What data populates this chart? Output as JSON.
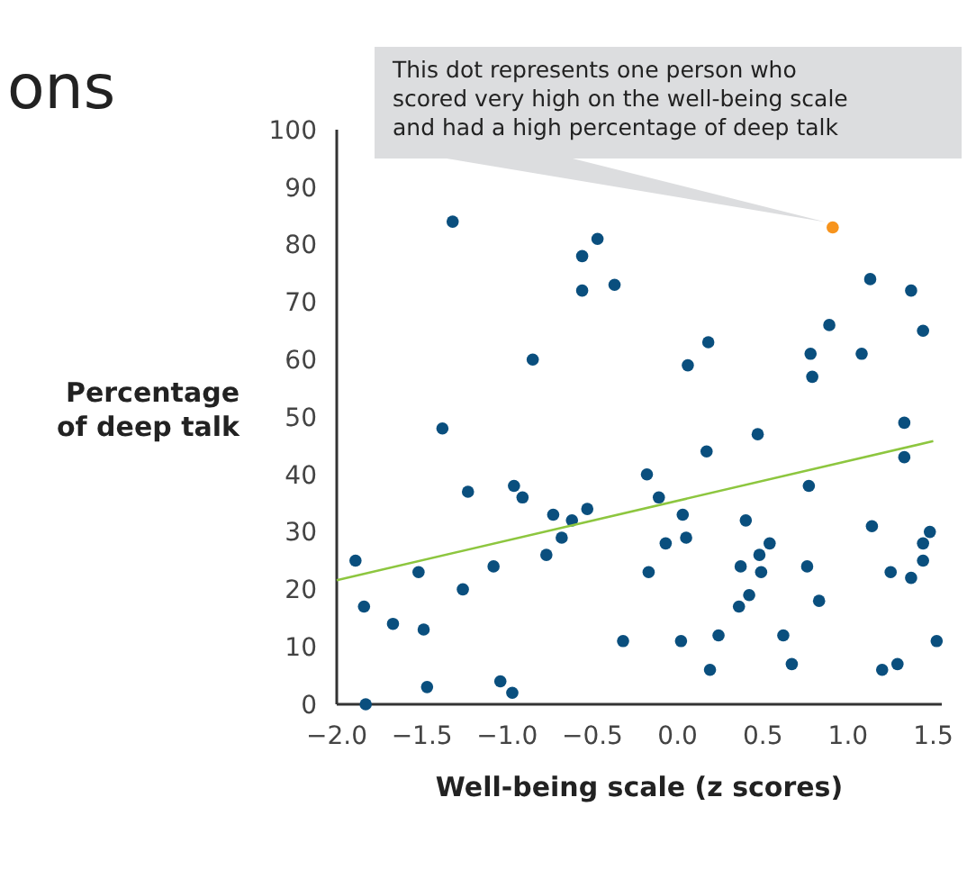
{
  "chart_data": {
    "type": "scatter",
    "xlabel": "Well-being scale (z scores)",
    "ylabel": "Percentage of deep talk",
    "annotations": [
      "ons",
      {
        "text": "This dot represents one person who scored very high on the well-being scale and had a high percentage of deep talk",
        "x": 0.91,
        "y": 83
      }
    ],
    "xlim": [
      -2.0,
      1.55
    ],
    "ylim": [
      0,
      100
    ],
    "xticks": [
      {
        "value": -2,
        "label": "−2.0"
      },
      {
        "value": -1.5,
        "label": "−1.5"
      },
      {
        "value": -1,
        "label": "−1.0"
      },
      {
        "value": -0.5,
        "label": "−0.5"
      },
      {
        "value": 0,
        "label": "0.0"
      },
      {
        "value": 0.5,
        "label": "0.5"
      },
      {
        "value": 1,
        "label": "1.0"
      },
      {
        "value": 1.5,
        "label": "1.5"
      }
    ],
    "yticks": [
      0,
      10,
      20,
      30,
      40,
      50,
      60,
      70,
      80,
      90,
      100
    ],
    "grid": false,
    "marker": "circle",
    "series": [
      {
        "color": "#0a4f7e",
        "x": [
          -1.32,
          -0.56,
          -0.47,
          -0.56,
          -0.37,
          -0.85,
          -1.38,
          1.13,
          1.37,
          1.44,
          0.89,
          0.78,
          1.08,
          0.79,
          0.06,
          0.18,
          1.33,
          1.33,
          0.47,
          0.17,
          -1.89,
          -1.84,
          -1.83,
          -1.67,
          -1.52,
          -1.49,
          -1.47,
          -1.26,
          -1.23,
          -1.08,
          -1.04,
          -0.97,
          -0.96,
          -0.91,
          -0.77,
          -0.73,
          -0.68,
          -0.62,
          -0.53,
          -0.18,
          -0.11,
          0.03,
          -0.07,
          0.05,
          -0.17,
          -0.32,
          0.02,
          0.19,
          0.24,
          0.4,
          0.54,
          0.48,
          0.49,
          0.37,
          0.42,
          0.36,
          0.62,
          0.67,
          0.76,
          0.77,
          0.83,
          1.14,
          1.25,
          1.37,
          1.44,
          1.44,
          1.48,
          1.52,
          1.2,
          1.29
        ],
        "values": [
          84,
          78,
          81,
          72,
          73,
          60,
          48,
          74,
          72,
          65,
          66,
          61,
          61,
          57,
          59,
          63,
          49,
          43,
          47,
          44,
          25,
          17,
          0,
          14,
          23,
          13,
          3,
          20,
          37,
          24,
          4,
          2,
          38,
          36,
          26,
          33,
          29,
          32,
          34,
          40,
          36,
          33,
          28,
          29,
          23,
          11,
          11,
          6,
          12,
          32,
          28,
          26,
          23,
          24,
          19,
          17,
          12,
          7,
          24,
          38,
          18,
          31,
          23,
          22,
          25,
          28,
          30,
          11,
          6,
          7
        ]
      },
      {
        "color": "#f7941d",
        "x": [
          0.91
        ],
        "values": [
          83
        ]
      },
      {
        "type": "line",
        "color": "#8dc63f",
        "x": [
          -2.0,
          1.5
        ],
        "values": [
          21.6,
          45.8
        ],
        "marker": "none"
      }
    ]
  }
}
